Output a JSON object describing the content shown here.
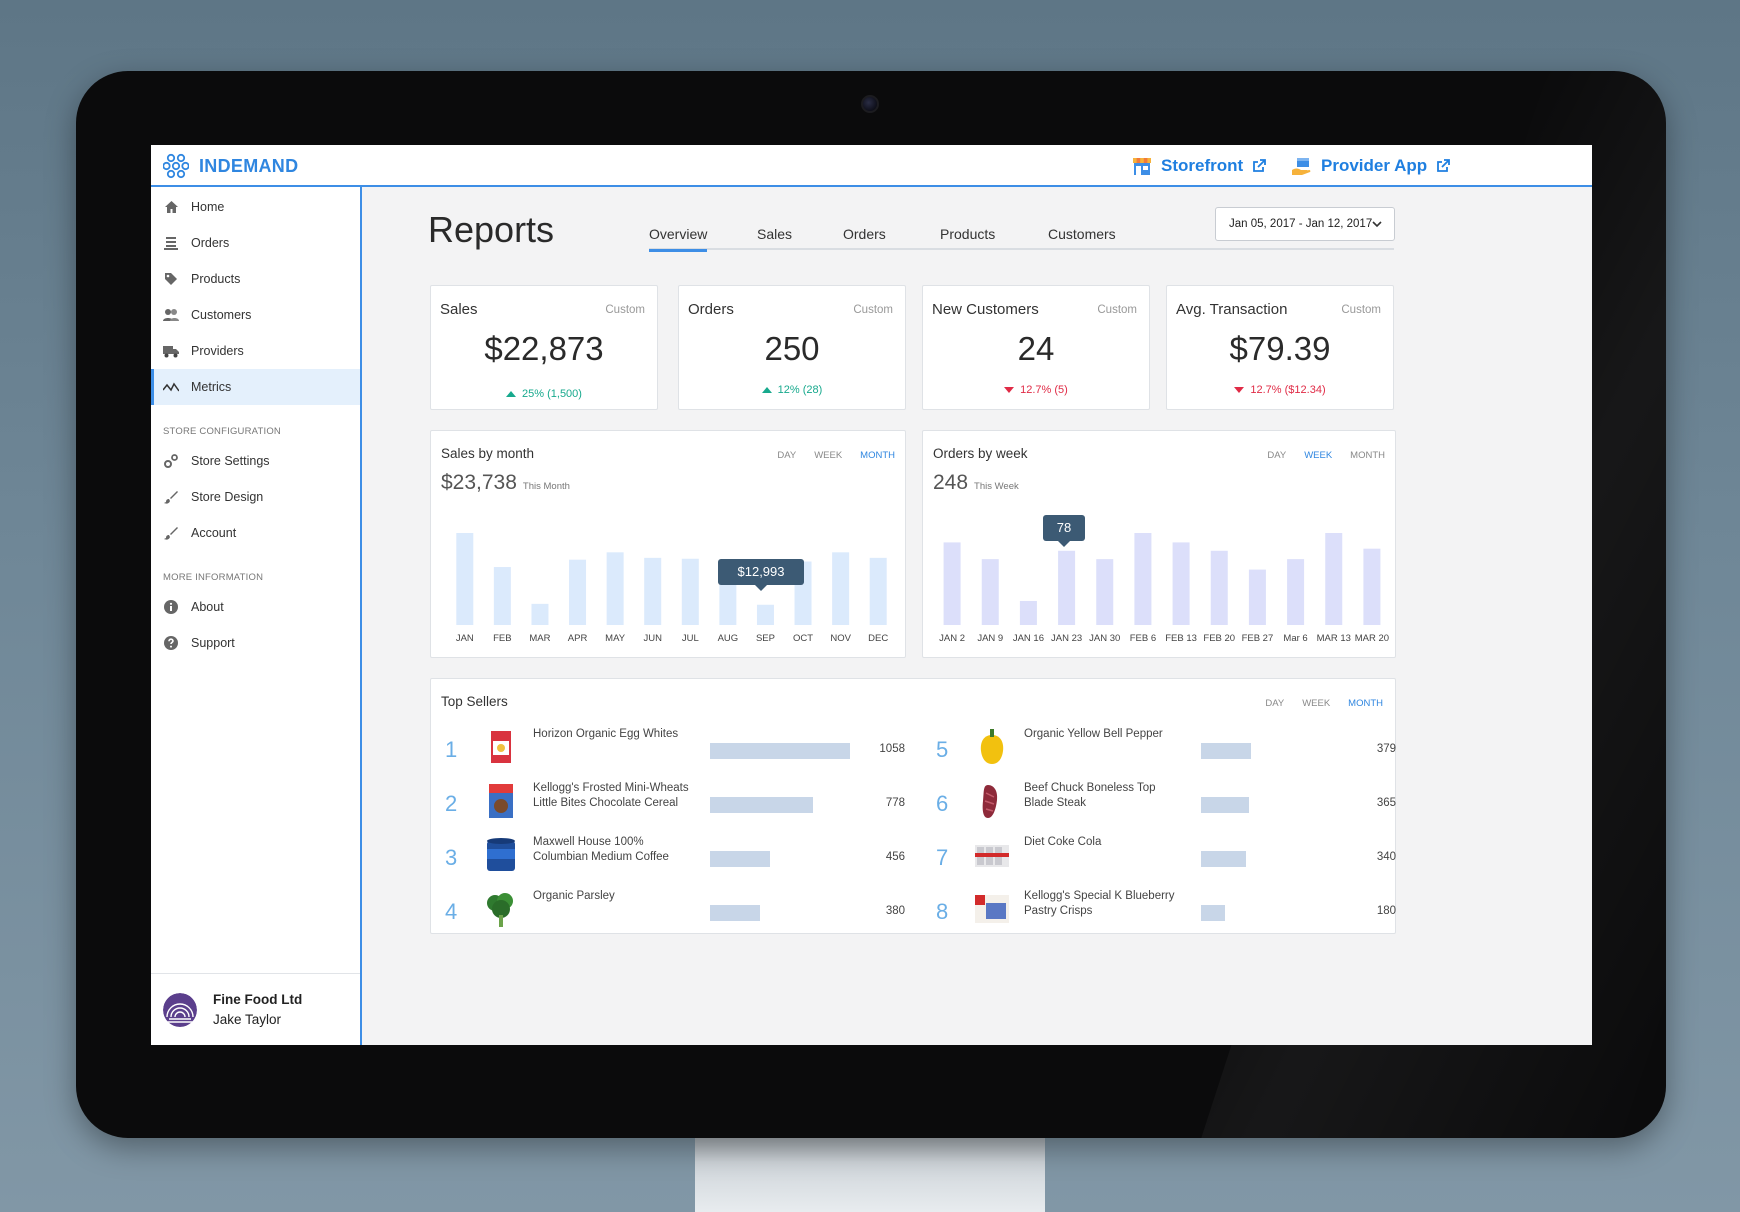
{
  "app": {
    "brand": "INDEMAND",
    "links": [
      {
        "label": "Storefront"
      },
      {
        "label": "Provider App"
      }
    ]
  },
  "sidebar": {
    "items": [
      {
        "label": "Home",
        "icon": "home-icon"
      },
      {
        "label": "Orders",
        "icon": "orders-icon"
      },
      {
        "label": "Products",
        "icon": "tag-icon"
      },
      {
        "label": "Customers",
        "icon": "users-icon"
      },
      {
        "label": "Providers",
        "icon": "truck-icon"
      },
      {
        "label": "Metrics",
        "icon": "metrics-icon",
        "active": true
      }
    ],
    "section_config": "STORE CONFIGURATION",
    "config_items": [
      {
        "label": "Store Settings",
        "icon": "settings-icon"
      },
      {
        "label": "Store Design",
        "icon": "brush-icon"
      },
      {
        "label": "Account",
        "icon": "brush-icon"
      }
    ],
    "section_info": "MORE INFORMATION",
    "info_items": [
      {
        "label": "About",
        "icon": "info-icon"
      },
      {
        "label": "Support",
        "icon": "help-icon"
      }
    ],
    "footer": {
      "org": "Fine Food Ltd",
      "user": "Jake Taylor"
    }
  },
  "page": {
    "title": "Reports",
    "tabs": [
      "Overview",
      "Sales",
      "Orders",
      "Products",
      "Customers"
    ],
    "active_tab": "Overview",
    "date_range": "Jan 05, 2017 - Jan 12, 2017"
  },
  "kpis": [
    {
      "label": "Sales",
      "tag": "Custom",
      "value": "$22,873",
      "change": "25% (1,500)",
      "direction": "up"
    },
    {
      "label": "Orders",
      "tag": "Custom",
      "value": "250",
      "change": "12% (28)",
      "direction": "up"
    },
    {
      "label": "New Customers",
      "tag": "Custom",
      "value": "24",
      "change": "12.7% (5)",
      "direction": "down"
    },
    {
      "label": "Avg. Transaction",
      "tag": "Custom",
      "value": "$79.39",
      "change": "12.7% ($12.34)",
      "direction": "down"
    }
  ],
  "range_labels": [
    "DAY",
    "WEEK",
    "MONTH"
  ],
  "charts": {
    "sales": {
      "title": "Sales by month",
      "active_range": "MONTH",
      "total": "$23,738",
      "total_sub": "This Month",
      "tooltip": "$12,993"
    },
    "orders": {
      "title": "Orders by week",
      "active_range": "WEEK",
      "total": "248",
      "total_sub": "This Week",
      "tooltip": "78"
    }
  },
  "chart_data": [
    {
      "type": "bar",
      "title": "Sales by month",
      "categories": [
        "JAN",
        "FEB",
        "MAR",
        "APR",
        "MAY",
        "JUN",
        "JUL",
        "AUG",
        "SEP",
        "OCT",
        "NOV",
        "DEC"
      ],
      "values": [
        100,
        63,
        23,
        71,
        79,
        73,
        72,
        68,
        22,
        69,
        79,
        73
      ],
      "highlight_index": 8,
      "bar_color": "#dbeafc",
      "grid": false
    },
    {
      "type": "bar",
      "title": "Orders by week",
      "categories": [
        "JAN 2",
        "JAN 9",
        "JAN 16",
        "JAN 23",
        "JAN 30",
        "FEB 6",
        "FEB 13",
        "FEB 20",
        "FEB 27",
        "Mar 6",
        "MAR 13",
        "MAR 20"
      ],
      "values": [
        79,
        63,
        23,
        71,
        63,
        88,
        79,
        71,
        53,
        63,
        88,
        73
      ],
      "highlight_index": 3,
      "bar_color": "#dcdffa",
      "grid": false
    }
  ],
  "top_sellers": {
    "title": "Top Sellers",
    "active_range": "MONTH",
    "items": [
      {
        "rank": "1",
        "name": "Horizon Organic Egg Whites",
        "count": "1058",
        "value": 1058,
        "thumb": "egg-carton-icon"
      },
      {
        "rank": "2",
        "name": "Kellogg's Frosted Mini-Wheats Little Bites Chocolate Cereal",
        "count": "778",
        "value": 778,
        "thumb": "cereal-box-icon"
      },
      {
        "rank": "3",
        "name": "Maxwell House 100% Columbian Medium Coffee",
        "count": "456",
        "value": 456,
        "thumb": "coffee-can-icon"
      },
      {
        "rank": "4",
        "name": "Organic Parsley",
        "count": "380",
        "value": 380,
        "thumb": "parsley-icon"
      },
      {
        "rank": "5",
        "name": "Organic Yellow Bell Pepper",
        "count": "379",
        "value": 379,
        "thumb": "pepper-icon"
      },
      {
        "rank": "6",
        "name": "Beef Chuck Boneless Top Blade Steak",
        "count": "365",
        "value": 365,
        "thumb": "steak-icon"
      },
      {
        "rank": "7",
        "name": "Diet Coke Cola",
        "count": "340",
        "value": 340,
        "thumb": "cola-pack-icon"
      },
      {
        "rank": "8",
        "name": "Kellogg's Special K Blueberry Pastry Crisps",
        "count": "180",
        "value": 180,
        "thumb": "pastry-box-icon"
      }
    ]
  },
  "colors": {
    "accent": "#2f86e0",
    "positive": "#17a98d",
    "negative": "#e02b46",
    "tooltip": "#3c5a74"
  }
}
